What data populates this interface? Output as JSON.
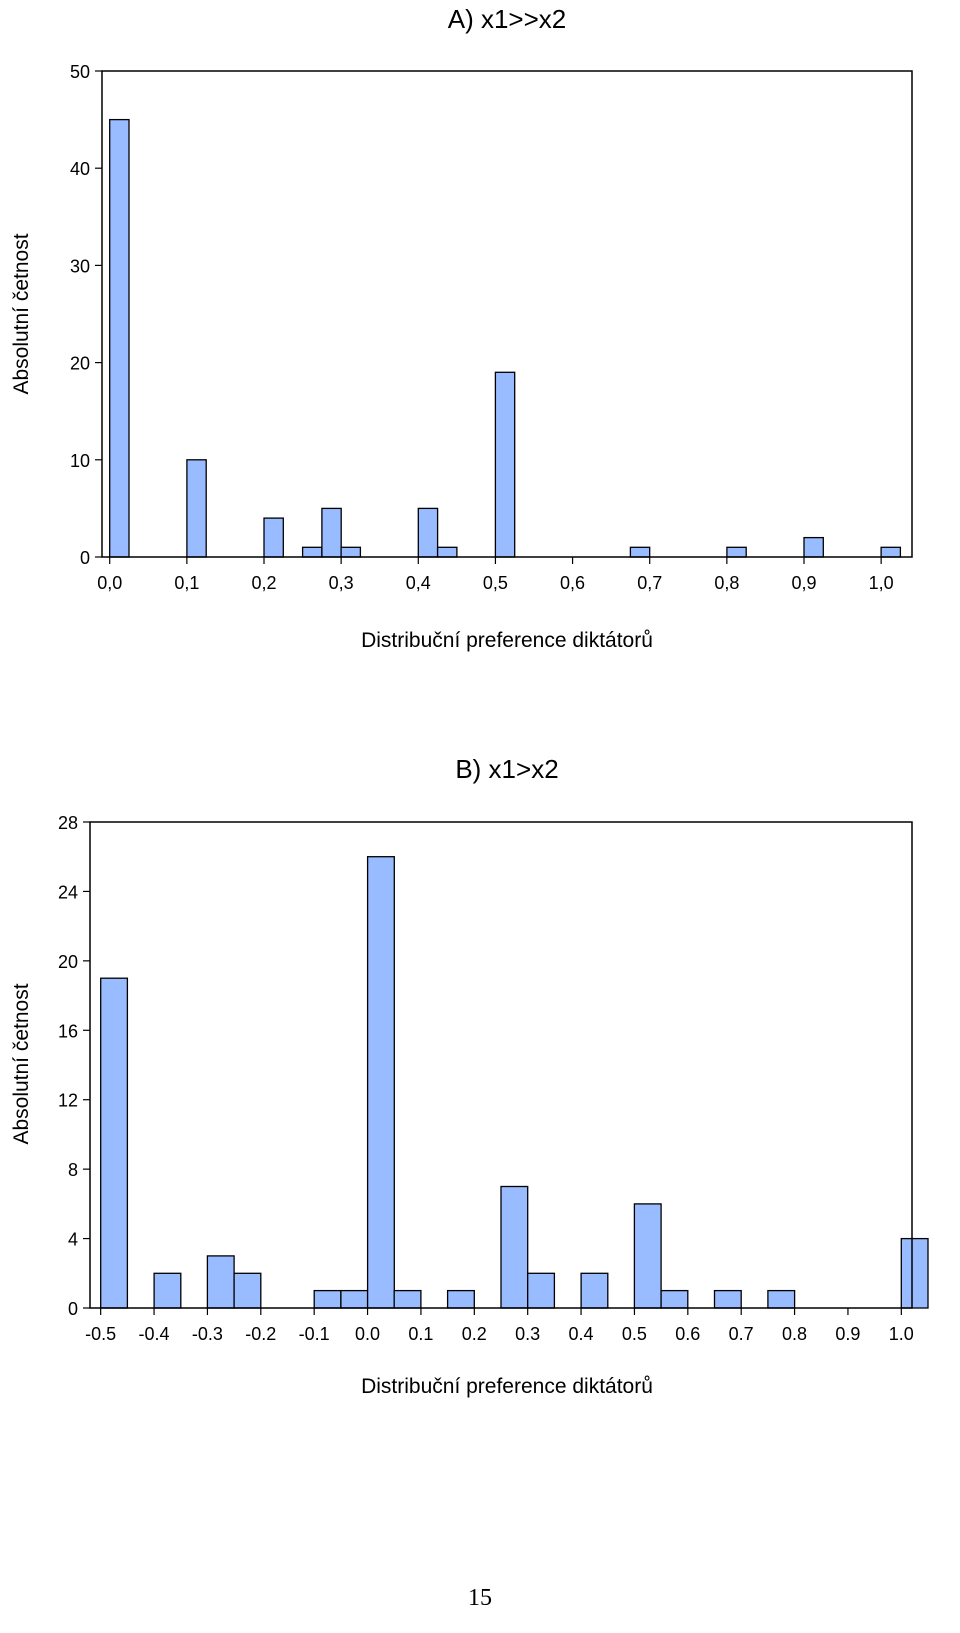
{
  "chart_data": [
    {
      "type": "bar",
      "title": "A) x1>>x2",
      "xlabel": "Distribuční preference diktátorů",
      "ylabel": "Absolutní četnost",
      "xlim": [
        -0.01,
        1.04
      ],
      "ylim": [
        0,
        50
      ],
      "yticks": [
        0,
        10,
        20,
        30,
        40,
        50
      ],
      "ytick_labels": [
        "0",
        "10",
        "20",
        "30",
        "40",
        "50"
      ],
      "xticks": [
        0.0,
        0.1,
        0.2,
        0.3,
        0.4,
        0.5,
        0.6,
        0.7,
        0.8,
        0.9,
        1.0
      ],
      "xtick_labels": [
        "0,0",
        "0,1",
        "0,2",
        "0,3",
        "0,4",
        "0,5",
        "0,6",
        "0,7",
        "0,8",
        "0,9",
        "1,0"
      ],
      "bin_width": 0.025,
      "bins": [
        {
          "x": 0.0,
          "value": 45
        },
        {
          "x": 0.1,
          "value": 10
        },
        {
          "x": 0.2,
          "value": 4
        },
        {
          "x": 0.25,
          "value": 1
        },
        {
          "x": 0.275,
          "value": 5
        },
        {
          "x": 0.3,
          "value": 1
        },
        {
          "x": 0.4,
          "value": 5
        },
        {
          "x": 0.425,
          "value": 1
        },
        {
          "x": 0.5,
          "value": 19
        },
        {
          "x": 0.675,
          "value": 1
        },
        {
          "x": 0.8,
          "value": 1
        },
        {
          "x": 0.9,
          "value": 2
        },
        {
          "x": 1.0,
          "value": 1
        }
      ],
      "color": "#99bbff",
      "grid": false
    },
    {
      "type": "bar",
      "title": "B) x1>x2",
      "xlabel": "Distribuční preference diktátorů",
      "ylabel": "Absolutní četnost",
      "xlim": [
        -0.52,
        1.02
      ],
      "ylim": [
        0,
        28
      ],
      "yticks": [
        0,
        4,
        8,
        12,
        16,
        20,
        24,
        28
      ],
      "ytick_labels": [
        "0",
        "4",
        "8",
        "12",
        "16",
        "20",
        "24",
        "28"
      ],
      "xticks": [
        -0.5,
        -0.4,
        -0.3,
        -0.2,
        -0.1,
        0.0,
        0.1,
        0.2,
        0.3,
        0.4,
        0.5,
        0.6,
        0.7,
        0.8,
        0.9,
        1.0
      ],
      "xtick_labels": [
        "-0.5",
        "-0.4",
        "-0.3",
        "-0.2",
        "-0.1",
        "0.0",
        "0.1",
        "0.2",
        "0.3",
        "0.4",
        "0.5",
        "0.6",
        "0.7",
        "0.8",
        "0.9",
        "1.0"
      ],
      "bin_width": 0.05,
      "bins": [
        {
          "x": -0.5,
          "value": 19
        },
        {
          "x": -0.4,
          "value": 2
        },
        {
          "x": -0.3,
          "value": 3
        },
        {
          "x": -0.25,
          "value": 2
        },
        {
          "x": -0.1,
          "value": 1
        },
        {
          "x": -0.05,
          "value": 1
        },
        {
          "x": 0.0,
          "value": 26
        },
        {
          "x": 0.05,
          "value": 1
        },
        {
          "x": 0.15,
          "value": 1
        },
        {
          "x": 0.25,
          "value": 7
        },
        {
          "x": 0.3,
          "value": 2
        },
        {
          "x": 0.4,
          "value": 2
        },
        {
          "x": 0.5,
          "value": 6
        },
        {
          "x": 0.55,
          "value": 1
        },
        {
          "x": 0.65,
          "value": 1
        },
        {
          "x": 0.75,
          "value": 1
        },
        {
          "x": 1.0,
          "value": 4
        }
      ],
      "color": "#99bbff",
      "grid": false
    }
  ],
  "page": {
    "number": "15"
  }
}
